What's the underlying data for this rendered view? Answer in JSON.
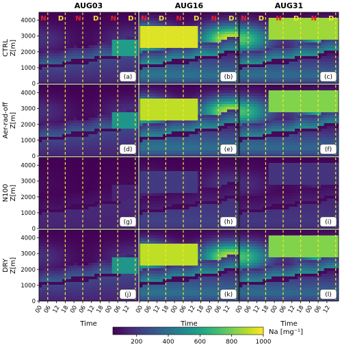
{
  "chart_data": {
    "type": "heatmap",
    "columns": [
      "AUG03",
      "AUG16",
      "AUG31"
    ],
    "rows": [
      "CTRL",
      "Aer-rad-off",
      "N100",
      "DRY"
    ],
    "panel_labels": [
      [
        "(a)",
        "(b)",
        "(c)"
      ],
      [
        "(d)",
        "(e)",
        "(f)"
      ],
      [
        "(g)",
        "(h)",
        "(i)"
      ],
      [
        "(j)",
        "(k)",
        "(l)"
      ]
    ],
    "ylabel": "Z[m]",
    "xlabel": "Time",
    "ylim": [
      0,
      4500
    ],
    "yticks": [
      "0",
      "1000",
      "2000",
      "3000",
      "4000"
    ],
    "xticks": [
      "00",
      "06",
      "12",
      "18",
      "00",
      "06",
      "12",
      "18",
      "00",
      "06",
      "12"
    ],
    "day_night_marks": [
      {
        "text": "N",
        "hour": 3,
        "color": "#e8212b"
      },
      {
        "text": "D",
        "hour": 15,
        "color": "#f7e436"
      },
      {
        "text": "N",
        "hour": 27,
        "color": "#e8212b"
      },
      {
        "text": "D",
        "hour": 39,
        "color": "#f7e436"
      },
      {
        "text": "N",
        "hour": 51,
        "color": "#e8212b"
      },
      {
        "text": "D",
        "hour": 63,
        "color": "#f7e436"
      }
    ],
    "dashed_lines_hours": [
      6,
      18,
      30,
      42,
      54,
      66
    ],
    "time_range_hours": [
      0,
      68
    ],
    "colorbar": {
      "label": "Na [mg⁻¹]",
      "ticks": [
        "200",
        "400",
        "600",
        "800",
        "1000"
      ],
      "range": [
        50,
        1000
      ],
      "colormap": "viridis"
    },
    "description_values": {
      "boundary_layer_top_m": {
        "start": 1000,
        "end": 2000
      },
      "AUG03_plume_level": "low",
      "AUG16_plume_level": "high",
      "AUG31_plume_level": "high",
      "N100_plume_level": "very low"
    }
  }
}
